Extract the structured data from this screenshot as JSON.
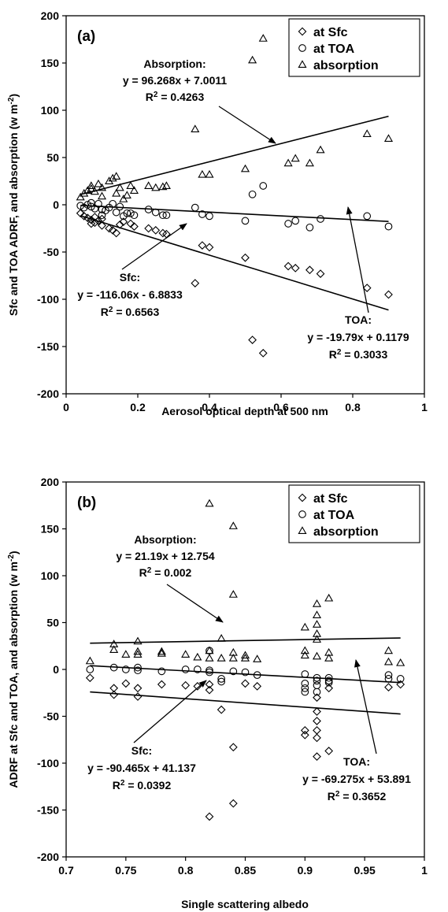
{
  "chart_data": [
    {
      "type": "scatter",
      "panel_label": "(a)",
      "xlabel": "Aerosol optical depth at 500 nm",
      "ylabel": "Sfc and TOA ADRF, and absorption (w m",
      "ylabel_sup": "-2",
      "ylabel_close": ")",
      "xlim": [
        0,
        1
      ],
      "ylim": [
        -200,
        200
      ],
      "xticks": [
        "0",
        "0.2",
        "0.4",
        "0.6",
        "0.8",
        "1"
      ],
      "yticks": [
        "-200",
        "-150",
        "-100",
        "-50",
        "0",
        "50",
        "100",
        "150",
        "200"
      ],
      "legend_position": "top-right",
      "series": [
        {
          "name": "at Sfc",
          "marker": "diamond",
          "points": [
            [
              0.04,
              -9
            ],
            [
              0.05,
              -12
            ],
            [
              0.06,
              -14
            ],
            [
              0.07,
              -16
            ],
            [
              0.07,
              -20
            ],
            [
              0.08,
              -13
            ],
            [
              0.08,
              -19
            ],
            [
              0.09,
              -17
            ],
            [
              0.1,
              -22
            ],
            [
              0.1,
              -15
            ],
            [
              0.12,
              -25
            ],
            [
              0.13,
              -27
            ],
            [
              0.14,
              -30
            ],
            [
              0.15,
              -21
            ],
            [
              0.16,
              -18
            ],
            [
              0.18,
              -20
            ],
            [
              0.19,
              -23
            ],
            [
              0.23,
              -25
            ],
            [
              0.25,
              -27
            ],
            [
              0.27,
              -30
            ],
            [
              0.28,
              -31
            ],
            [
              0.36,
              -83
            ],
            [
              0.38,
              -43
            ],
            [
              0.4,
              -45
            ],
            [
              0.5,
              -56
            ],
            [
              0.52,
              -143
            ],
            [
              0.55,
              -157
            ],
            [
              0.62,
              -65
            ],
            [
              0.64,
              -67
            ],
            [
              0.68,
              -69
            ],
            [
              0.71,
              -73
            ],
            [
              0.84,
              -88
            ],
            [
              0.9,
              -95
            ]
          ]
        },
        {
          "name": "at TOA",
          "marker": "circle",
          "points": [
            [
              0.04,
              -1
            ],
            [
              0.05,
              -3
            ],
            [
              0.06,
              0
            ],
            [
              0.07,
              -2
            ],
            [
              0.07,
              2
            ],
            [
              0.08,
              -4
            ],
            [
              0.09,
              1
            ],
            [
              0.1,
              -5
            ],
            [
              0.1,
              -11
            ],
            [
              0.11,
              -6
            ],
            [
              0.12,
              -3
            ],
            [
              0.13,
              1
            ],
            [
              0.14,
              -8
            ],
            [
              0.15,
              -2
            ],
            [
              0.16,
              -12
            ],
            [
              0.17,
              -9
            ],
            [
              0.18,
              -9
            ],
            [
              0.19,
              -11
            ],
            [
              0.23,
              -5
            ],
            [
              0.25,
              -8
            ],
            [
              0.27,
              -11
            ],
            [
              0.28,
              -11
            ],
            [
              0.36,
              -3
            ],
            [
              0.38,
              -10
            ],
            [
              0.4,
              -12
            ],
            [
              0.5,
              -17
            ],
            [
              0.52,
              11
            ],
            [
              0.55,
              20
            ],
            [
              0.62,
              -20
            ],
            [
              0.64,
              -17
            ],
            [
              0.68,
              -24
            ],
            [
              0.71,
              -15
            ],
            [
              0.84,
              -12
            ],
            [
              0.9,
              -23
            ]
          ]
        },
        {
          "name": "absorption",
          "marker": "triangle",
          "points": [
            [
              0.04,
              8
            ],
            [
              0.05,
              12
            ],
            [
              0.06,
              15
            ],
            [
              0.07,
              20
            ],
            [
              0.07,
              17
            ],
            [
              0.08,
              14
            ],
            [
              0.09,
              22
            ],
            [
              0.1,
              18
            ],
            [
              0.1,
              9
            ],
            [
              0.12,
              25
            ],
            [
              0.13,
              28
            ],
            [
              0.14,
              30
            ],
            [
              0.14,
              12
            ],
            [
              0.15,
              18
            ],
            [
              0.16,
              6
            ],
            [
              0.17,
              10
            ],
            [
              0.18,
              20
            ],
            [
              0.19,
              15
            ],
            [
              0.23,
              20
            ],
            [
              0.25,
              18
            ],
            [
              0.27,
              19
            ],
            [
              0.28,
              20
            ],
            [
              0.36,
              80
            ],
            [
              0.38,
              32
            ],
            [
              0.4,
              32
            ],
            [
              0.5,
              38
            ],
            [
              0.52,
              153
            ],
            [
              0.55,
              176
            ],
            [
              0.62,
              44
            ],
            [
              0.64,
              49
            ],
            [
              0.68,
              44
            ],
            [
              0.71,
              58
            ],
            [
              0.84,
              75
            ],
            [
              0.9,
              70
            ]
          ]
        }
      ],
      "fits": [
        {
          "name": "Absorption",
          "slope": 96.268,
          "intercept": 7.0011,
          "x_range": [
            0.04,
            0.9
          ],
          "lines": [
            "Absorption:",
            "y = 96.268x + 7.0011",
            "R",
            "2",
            " = 0.4263"
          ]
        },
        {
          "name": "Sfc",
          "slope": -116.06,
          "intercept": -6.8833,
          "x_range": [
            0.04,
            0.9
          ],
          "lines": [
            "Sfc:",
            "y = -116.06x - 6.8833",
            "R",
            "2",
            " = 0.6563"
          ]
        },
        {
          "name": "TOA",
          "slope": -19.79,
          "intercept": 0.1179,
          "x_range": [
            0.04,
            0.9
          ],
          "lines": [
            "TOA:",
            "y = -19.79x + 0.1179",
            "R",
            "2",
            " = 0.3033"
          ]
        }
      ]
    },
    {
      "type": "scatter",
      "panel_label": "(b)",
      "xlabel": "Single scattering albedo",
      "ylabel": "ADRF at Sfc and TOA, and absorption (w m",
      "ylabel_sup": "-2",
      "ylabel_close": ")",
      "xlim": [
        0.7,
        1
      ],
      "ylim": [
        -200,
        200
      ],
      "xticks": [
        "0.7",
        "0.75",
        "0.8",
        "0.85",
        "0.9",
        "0.95",
        "1"
      ],
      "yticks": [
        "-200",
        "-150",
        "-100",
        "-50",
        "0",
        "50",
        "100",
        "150",
        "200"
      ],
      "legend_position": "top-right",
      "series": [
        {
          "name": "at Sfc",
          "marker": "diamond",
          "points": [
            [
              0.72,
              -9
            ],
            [
              0.74,
              -20
            ],
            [
              0.74,
              -27
            ],
            [
              0.75,
              -15
            ],
            [
              0.76,
              -20
            ],
            [
              0.76,
              -29
            ],
            [
              0.78,
              -16
            ],
            [
              0.8,
              -17
            ],
            [
              0.81,
              -18
            ],
            [
              0.82,
              -16
            ],
            [
              0.82,
              -22
            ],
            [
              0.82,
              -157
            ],
            [
              0.83,
              -43
            ],
            [
              0.84,
              -83
            ],
            [
              0.84,
              -143
            ],
            [
              0.85,
              -15
            ],
            [
              0.86,
              -18
            ],
            [
              0.9,
              -65
            ],
            [
              0.9,
              -70
            ],
            [
              0.91,
              -30
            ],
            [
              0.91,
              -45
            ],
            [
              0.91,
              -55
            ],
            [
              0.91,
              -65
            ],
            [
              0.91,
              -73
            ],
            [
              0.91,
              -93
            ],
            [
              0.92,
              -20
            ],
            [
              0.92,
              -87
            ],
            [
              0.97,
              -19
            ],
            [
              0.98,
              -16
            ]
          ]
        },
        {
          "name": "at TOA",
          "marker": "circle",
          "points": [
            [
              0.72,
              0
            ],
            [
              0.74,
              2
            ],
            [
              0.75,
              0
            ],
            [
              0.76,
              -1
            ],
            [
              0.76,
              2
            ],
            [
              0.78,
              -2
            ],
            [
              0.8,
              0
            ],
            [
              0.81,
              0
            ],
            [
              0.82,
              -1
            ],
            [
              0.82,
              -3
            ],
            [
              0.82,
              20
            ],
            [
              0.83,
              -10
            ],
            [
              0.83,
              -13
            ],
            [
              0.84,
              -2
            ],
            [
              0.85,
              -3
            ],
            [
              0.86,
              -6
            ],
            [
              0.9,
              -5
            ],
            [
              0.9,
              -15
            ],
            [
              0.9,
              -20
            ],
            [
              0.9,
              -24
            ],
            [
              0.91,
              -9
            ],
            [
              0.91,
              -12
            ],
            [
              0.91,
              -17
            ],
            [
              0.91,
              -24
            ],
            [
              0.92,
              -9
            ],
            [
              0.92,
              -12
            ],
            [
              0.92,
              -14
            ],
            [
              0.97,
              -6
            ],
            [
              0.97,
              -10
            ],
            [
              0.98,
              -10
            ]
          ]
        },
        {
          "name": "absorption",
          "marker": "triangle",
          "points": [
            [
              0.72,
              9
            ],
            [
              0.74,
              21
            ],
            [
              0.74,
              27
            ],
            [
              0.75,
              16
            ],
            [
              0.76,
              16
            ],
            [
              0.76,
              19
            ],
            [
              0.76,
              30
            ],
            [
              0.78,
              17
            ],
            [
              0.78,
              19
            ],
            [
              0.8,
              16
            ],
            [
              0.81,
              13
            ],
            [
              0.82,
              12
            ],
            [
              0.82,
              20
            ],
            [
              0.82,
              177
            ],
            [
              0.83,
              33
            ],
            [
              0.83,
              12
            ],
            [
              0.84,
              12
            ],
            [
              0.84,
              18
            ],
            [
              0.84,
              80
            ],
            [
              0.84,
              153
            ],
            [
              0.85,
              15
            ],
            [
              0.85,
              12
            ],
            [
              0.86,
              11
            ],
            [
              0.9,
              45
            ],
            [
              0.9,
              20
            ],
            [
              0.9,
              15
            ],
            [
              0.91,
              32
            ],
            [
              0.91,
              38
            ],
            [
              0.91,
              48
            ],
            [
              0.91,
              58
            ],
            [
              0.91,
              70
            ],
            [
              0.91,
              14
            ],
            [
              0.92,
              76
            ],
            [
              0.92,
              18
            ],
            [
              0.92,
              12
            ],
            [
              0.97,
              20
            ],
            [
              0.97,
              8
            ],
            [
              0.98,
              7
            ]
          ]
        }
      ],
      "fits": [
        {
          "name": "Absorption",
          "slope": 21.19,
          "intercept": 12.754,
          "x_range": [
            0.72,
            0.98
          ],
          "lines": [
            "Absorption:",
            "y = 21.19x + 12.754",
            "R",
            "2",
            " = 0.002"
          ]
        },
        {
          "name": "Sfc",
          "slope": -90.465,
          "intercept": 41.137,
          "x_range": [
            0.72,
            0.98
          ],
          "lines": [
            "Sfc:",
            "y = -90.465x + 41.137",
            "R",
            "2",
            " = 0.0392"
          ]
        },
        {
          "name": "TOA",
          "slope": -69.275,
          "intercept": 53.891,
          "x_range": [
            0.72,
            0.98
          ],
          "lines": [
            "TOA:",
            "y = -69.275x + 53.891",
            "R",
            "2",
            " = 0.3652"
          ]
        }
      ]
    }
  ]
}
